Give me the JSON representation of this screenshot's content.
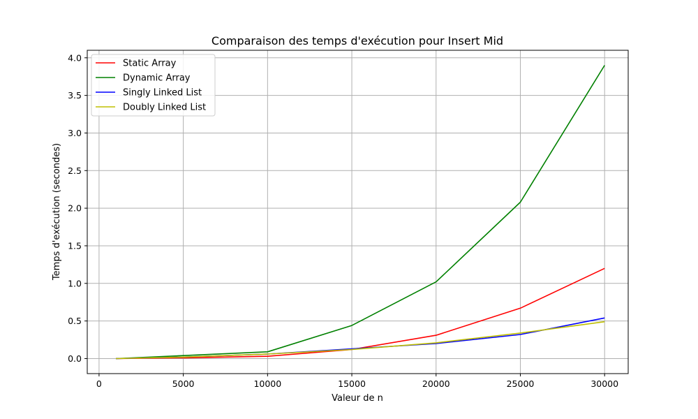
{
  "chart_data": {
    "type": "line",
    "title": "Comparaison des temps d'exécution pour Insert Mid",
    "xlabel": "Valeur de n",
    "ylabel": "Temps d'exécution (secondes)",
    "xlim": [
      -700,
      31400
    ],
    "ylim": [
      -0.2,
      4.1
    ],
    "xticks": [
      0,
      5000,
      10000,
      15000,
      20000,
      25000,
      30000
    ],
    "xtick_labels": [
      "0",
      "5000",
      "10000",
      "15000",
      "20000",
      "25000",
      "30000"
    ],
    "yticks": [
      0.0,
      0.5,
      1.0,
      1.5,
      2.0,
      2.5,
      3.0,
      3.5,
      4.0
    ],
    "ytick_labels": [
      "0.0",
      "0.5",
      "1.0",
      "1.5",
      "2.0",
      "2.5",
      "3.0",
      "3.5",
      "4.0"
    ],
    "grid": true,
    "legend_position": "top-left",
    "x": [
      1000,
      5000,
      10000,
      15000,
      20000,
      25000,
      30000
    ],
    "series": [
      {
        "name": "Static Array",
        "color": "#ff0000",
        "values": [
          0.0,
          0.01,
          0.03,
          0.12,
          0.31,
          0.67,
          1.2
        ]
      },
      {
        "name": "Dynamic Array",
        "color": "#008000",
        "values": [
          0.0,
          0.04,
          0.09,
          0.44,
          1.02,
          2.08,
          3.9
        ]
      },
      {
        "name": "Singly Linked List",
        "color": "#0000ff",
        "values": [
          0.0,
          0.02,
          0.06,
          0.13,
          0.2,
          0.32,
          0.54
        ]
      },
      {
        "name": "Doubly Linked List",
        "color": "#bfbf00",
        "values": [
          0.0,
          0.02,
          0.06,
          0.12,
          0.21,
          0.34,
          0.49
        ]
      }
    ]
  }
}
